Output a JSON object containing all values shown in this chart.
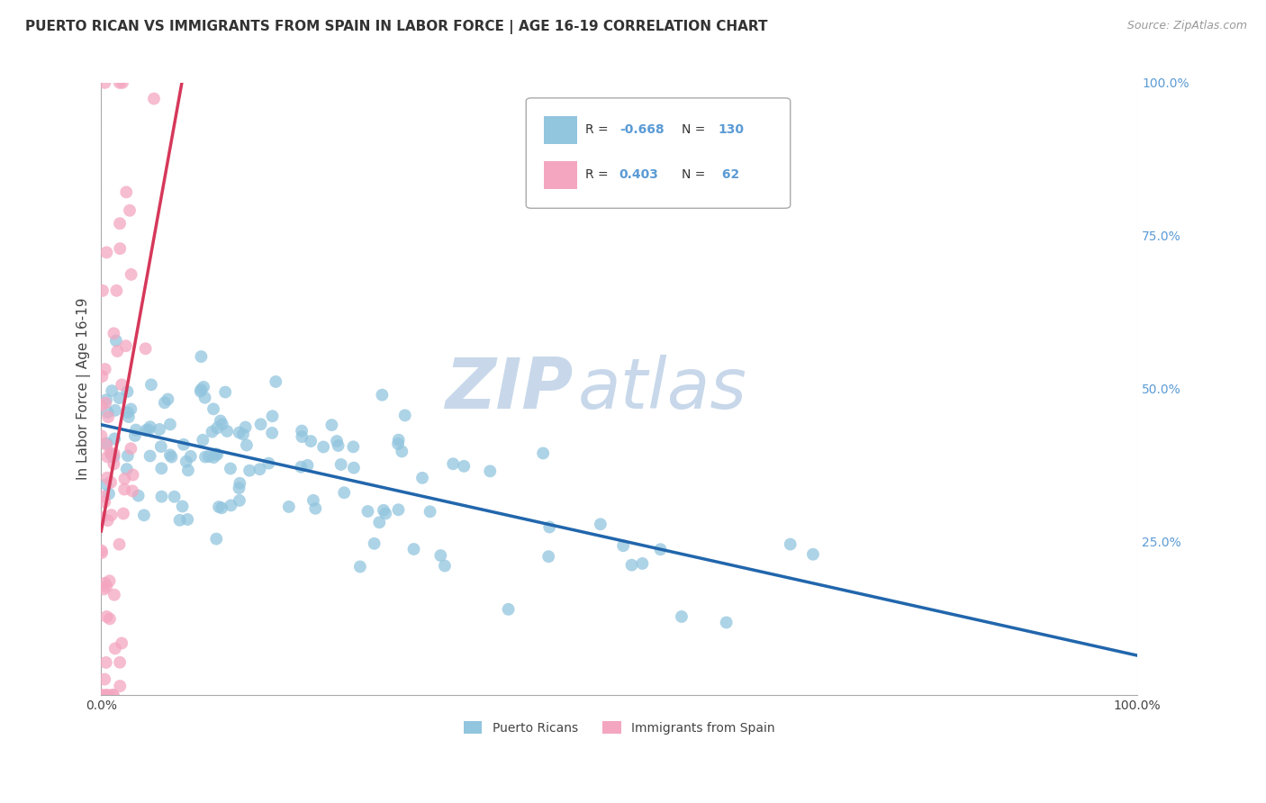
{
  "title": "PUERTO RICAN VS IMMIGRANTS FROM SPAIN IN LABOR FORCE | AGE 16-19 CORRELATION CHART",
  "source": "Source: ZipAtlas.com",
  "ylabel": "In Labor Force | Age 16-19",
  "blue_color": "#92c5de",
  "pink_color": "#f4a6c0",
  "blue_line_color": "#2166ac",
  "pink_line_color": "#d6385a",
  "pink_line_dash": [
    6,
    4
  ],
  "r_blue": -0.668,
  "n_blue": 130,
  "r_pink": 0.403,
  "n_pink": 62,
  "x_min": 0.0,
  "x_max": 100.0,
  "y_min": 0.0,
  "y_max": 100.0,
  "background_color": "#ffffff",
  "grid_color": "#cccccc",
  "watermark_zip": "ZIP",
  "watermark_atlas": "atlas",
  "watermark_color": "#c8d8ea",
  "title_fontsize": 11,
  "axis_label_fontsize": 11,
  "tick_fontsize": 10,
  "legend_fontsize": 11,
  "source_fontsize": 9,
  "right_tick_color": "#5b9bd5"
}
